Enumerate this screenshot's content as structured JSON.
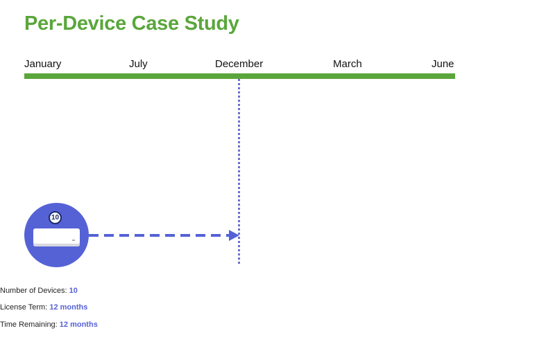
{
  "title": "Per-Device Case Study",
  "timeline": {
    "months": [
      "January",
      "July",
      "December",
      "March",
      "June"
    ],
    "bar_color": "#5aa63c"
  },
  "device": {
    "count_badge": "10",
    "icon": "network-appliance-icon",
    "circle_color": "#5562d6"
  },
  "stats": {
    "devices_label": "Number of Devices: ",
    "devices_value": "10",
    "license_label": "License Term: ",
    "license_value": "12 months",
    "remaining_label": "Time Remaining: ",
    "remaining_value": "12 months"
  },
  "colors": {
    "title": "#5aa63c",
    "accent": "#5562d6",
    "marker": "#6a6fd0"
  }
}
